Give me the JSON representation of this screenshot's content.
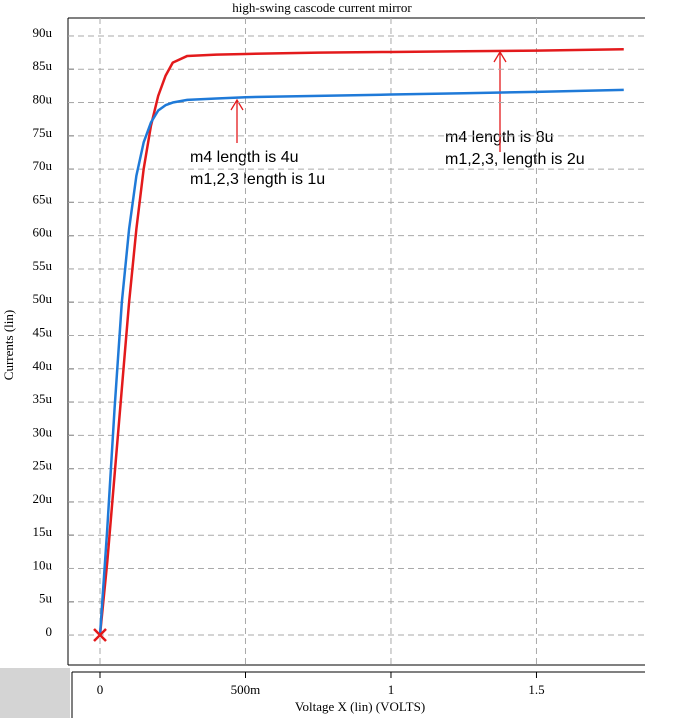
{
  "chart_data": {
    "type": "line",
    "title": "high-swing cascode current mirror",
    "x_label": "Voltage X (lin) (VOLTS)",
    "y_label": "Currents (lin)",
    "x": [
      0,
      0.025,
      0.05,
      0.075,
      0.1,
      0.125,
      0.15,
      0.175,
      0.2,
      0.225,
      0.25,
      0.3,
      0.4,
      0.5,
      0.75,
      1,
      1.25,
      1.5,
      1.8
    ],
    "series": [
      {
        "color": "#e31a1c",
        "values": [
          0,
          11,
          24,
          37,
          50,
          61,
          70,
          76.5,
          81,
          84,
          86,
          87,
          87.2,
          87.3,
          87.5,
          87.6,
          87.7,
          87.8,
          88
        ]
      },
      {
        "color": "#1f7ad8",
        "values": [
          0,
          16,
          34,
          50,
          61,
          69,
          74,
          77,
          78.8,
          79.6,
          80,
          80.4,
          80.6,
          80.8,
          81.0,
          81.2,
          81.4,
          81.6,
          81.9
        ]
      }
    ],
    "xlim": [
      -0.11,
      1.873
    ],
    "ylim": [
      -4.5,
      92.7
    ],
    "xticks": [
      0,
      {
        "value": 0.5,
        "label": "500m"
      },
      1,
      1.5
    ],
    "yticks": [
      0,
      {
        "value": 5,
        "label": "5u"
      },
      {
        "value": 10,
        "label": "10u"
      },
      {
        "value": 15,
        "label": "15u"
      },
      {
        "value": 20,
        "label": "20u"
      },
      {
        "value": 25,
        "label": "25u"
      },
      {
        "value": 30,
        "label": "30u"
      },
      {
        "value": 35,
        "label": "35u"
      },
      {
        "value": 40,
        "label": "40u"
      },
      {
        "value": 45,
        "label": "45u"
      },
      {
        "value": 50,
        "label": "50u"
      },
      {
        "value": 55,
        "label": "55u"
      },
      {
        "value": 60,
        "label": "60u"
      },
      {
        "value": 65,
        "label": "65u"
      },
      {
        "value": 70,
        "label": "70u"
      },
      {
        "value": 75,
        "label": "75u"
      },
      {
        "value": 80,
        "label": "80u"
      },
      {
        "value": 85,
        "label": "85u"
      },
      {
        "value": 90,
        "label": "90u"
      }
    ],
    "grid": true,
    "annotations": [
      {
        "lines": [
          "m4 length is 4u",
          "m1,2,3 length is 1u"
        ]
      },
      {
        "lines": [
          "m4 length is 8u",
          "m1,2,3, length is 2u"
        ]
      }
    ]
  }
}
